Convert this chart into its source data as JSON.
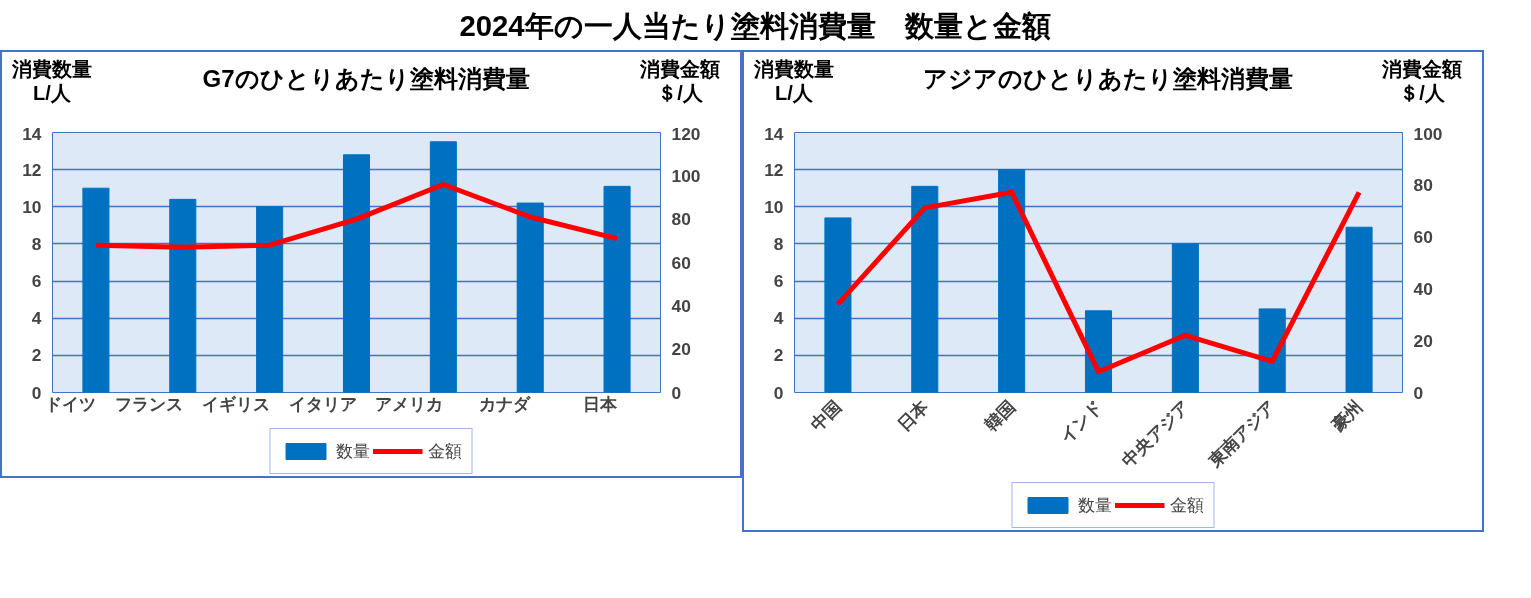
{
  "chart_data": [
    {
      "type": "bar",
      "annotations": [
        "2024年の一人当たり塗料消費量　数量と金額"
      ],
      "title": "G7のひとりあたり塗料消費量",
      "ylabel": "消費数量L/人",
      "y2label": "消費金額＄/人",
      "categories": [
        "ドイツ",
        "フランス",
        "イギリス",
        "イタリア",
        "アメリカ",
        "カナダ",
        "日本"
      ],
      "series": [
        {
          "name": "数量",
          "color": "#0070c0",
          "values": [
            11.0,
            10.4,
            10.0,
            12.8,
            13.5,
            10.2,
            11.1
          ]
        },
        {
          "name": "金額",
          "type": "line",
          "axis": "y2",
          "color": "#ff0000",
          "values": [
            68,
            67,
            68,
            80,
            96,
            81,
            71
          ]
        }
      ],
      "ylim": [
        0,
        14
      ],
      "yticks": [
        0,
        2,
        4,
        6,
        8,
        10,
        12,
        14
      ],
      "y2lim": [
        0,
        120
      ],
      "y2ticks": [
        0,
        20,
        40,
        60,
        80,
        100,
        120
      ],
      "grid": "y",
      "legend": "bottom"
    },
    {
      "type": "bar",
      "title": "アジアのひとりあたり塗料消費量",
      "ylabel": "消費数量L/人",
      "y2label": "消費金額＄/人",
      "categories": [
        "中国",
        "日本",
        "韓国",
        "インド",
        "中央アジア",
        "東南アジア",
        "豪州"
      ],
      "series": [
        {
          "name": "数量",
          "color": "#0070c0",
          "values": [
            9.4,
            11.1,
            12.0,
            4.4,
            8.0,
            4.5,
            8.9
          ]
        },
        {
          "name": "金額",
          "type": "line",
          "axis": "y2",
          "color": "#ff0000",
          "values": [
            34,
            71,
            77,
            8,
            22,
            12,
            77
          ]
        }
      ],
      "ylim": [
        0,
        14
      ],
      "yticks": [
        0,
        2,
        4,
        6,
        8,
        10,
        12,
        14
      ],
      "y2lim": [
        0,
        100
      ],
      "y2ticks": [
        0,
        20,
        40,
        60,
        80,
        100
      ],
      "grid": "y",
      "legend": "bottom"
    }
  ]
}
